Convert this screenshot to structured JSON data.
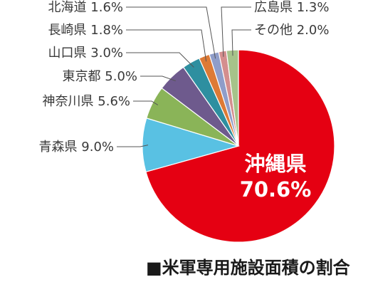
{
  "chart_data": {
    "type": "pie",
    "title": "■米軍専用施設面積の割合",
    "unit": "%",
    "slices": [
      {
        "name": "沖縄県",
        "value": 70.6,
        "value_label": "70.6%",
        "color": "#e50012"
      },
      {
        "name": "青森県",
        "value": 9.0,
        "value_label": "9.0%",
        "color": "#59c1e3"
      },
      {
        "name": "神奈川県",
        "value": 5.6,
        "value_label": "5.6%",
        "color": "#8ab458"
      },
      {
        "name": "東京都",
        "value": 5.0,
        "value_label": "5.0%",
        "color": "#6e5a8d"
      },
      {
        "name": "山口県",
        "value": 3.0,
        "value_label": "3.0%",
        "color": "#2e8fa0"
      },
      {
        "name": "長崎県",
        "value": 1.8,
        "value_label": "1.8%",
        "color": "#dd7a35"
      },
      {
        "name": "北海道",
        "value": 1.6,
        "value_label": "1.6%",
        "color": "#8f9dc9"
      },
      {
        "name": "広島県",
        "value": 1.3,
        "value_label": "1.3%",
        "color": "#d48e8e"
      },
      {
        "name": "その他",
        "value": 2.0,
        "value_label": "2.0%",
        "color": "#a6c38a"
      }
    ],
    "start_angle_deg": 0,
    "direction": "clockwise",
    "legend": "none"
  }
}
